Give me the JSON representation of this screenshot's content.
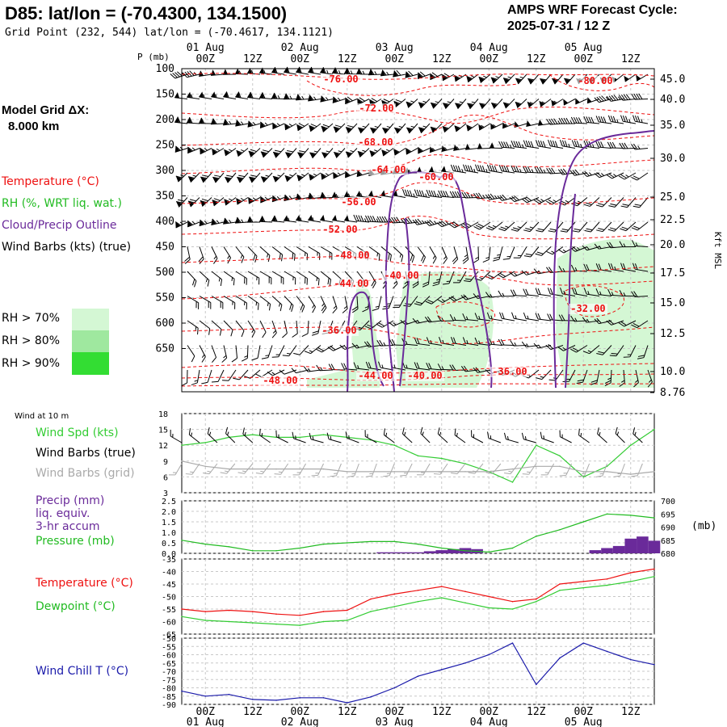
{
  "header": {
    "title": "D85:  lat/lon = (-70.4300, 134.1500)",
    "grid_point": "Grid Point (232, 544) lat/lon = (-70.4617, 134.1121)",
    "cycle_line1": "AMPS WRF Forecast Cycle:",
    "cycle_line2": "2025-07-31 / 12  Z"
  },
  "model_grid": {
    "line1": "Model Grid ΔX:",
    "line2": "8.000 km"
  },
  "legend": {
    "temperature": "Temperature (°C)",
    "rh": "RH (%, WRT liq. wat.)",
    "cloud": "Cloud/Precip Outline",
    "wind": "Wind Barbs (kts) (true)",
    "rh70": "RH > 70%",
    "rh80": "RH > 80%",
    "rh90": "RH > 90%",
    "rh_colors": [
      "#d4f7d4",
      "#9fe89f",
      "#33dd33"
    ]
  },
  "time_axis": {
    "hour_labels": [
      "00Z",
      "12Z",
      "00Z",
      "12Z",
      "00Z",
      "12Z",
      "00Z",
      "12Z",
      "00Z",
      "12Z"
    ],
    "date_labels": [
      "01 Aug",
      "02 Aug",
      "03 Aug",
      "04 Aug",
      "05 Aug"
    ]
  },
  "cross_section": {
    "pressure_unit_label": "P (mb)",
    "pressure_levels": [
      "100",
      "150",
      "200",
      "250",
      "300",
      "350",
      "400",
      "450",
      "500",
      "550",
      "600",
      "650"
    ],
    "height_labels": [
      "45.0",
      "40.0",
      "35.0",
      "30.0",
      "25.0",
      "22.5",
      "20.0",
      "17.5",
      "15.0",
      "12.5",
      "10.0",
      "8.76"
    ],
    "height_unit_label": "Kft MSL",
    "temperature_contour_labels": [
      "-76.00",
      "-80.00",
      "-72.00",
      "-68.00",
      "-64.00",
      "-60.00",
      "-56.00",
      "-52.00",
      "-48.00",
      "-40.00",
      "-44.00",
      "-32.00",
      "-36.00",
      "-44.00",
      "-40.00",
      "-36.00",
      "-48.00"
    ],
    "colors": {
      "temperature": "#ee1111",
      "cloud": "#6a2a9a",
      "barb": "#000000"
    }
  },
  "surface_wind": {
    "header": "Wind at 10 m",
    "speed_label": "Wind Spd (kts)",
    "true_label": "Wind Barbs (true)",
    "grid_label": "Wind Barbs (grid)",
    "ticks": [
      "18",
      "15",
      "12",
      "9",
      "6",
      "3"
    ]
  },
  "precip": {
    "label1": "Precip (mm)",
    "label2": "liq. equiv.",
    "label3": "3-hr accum",
    "pressure_label": "Pressure (mb)",
    "ticks_left": [
      "2.5",
      "2.0",
      "1.5",
      "1.0",
      "0.5",
      "0.0"
    ],
    "ticks_right": [
      "700",
      "695",
      "690",
      "685",
      "680"
    ],
    "right_unit": "(mb)"
  },
  "temp_panel": {
    "temperature_label": "Temperature (°C)",
    "dewpoint_label": "Dewpoint (°C)",
    "ticks": [
      "-35",
      "-40",
      "-45",
      "-50",
      "-55",
      "-60",
      "-65"
    ]
  },
  "windchill_panel": {
    "label": "Wind Chill T (°C)",
    "ticks": [
      "-50",
      "-55",
      "-60",
      "-65",
      "-70",
      "-75",
      "-80",
      "-85",
      "-90"
    ]
  },
  "chart_data": [
    {
      "type": "line",
      "title": "Wind at 10 m",
      "x_hours": [
        0,
        6,
        12,
        18,
        24,
        30,
        36,
        42,
        48,
        54,
        60,
        66,
        72,
        78,
        84,
        90,
        96,
        102,
        108,
        114,
        120
      ],
      "series": [
        {
          "name": "Wind Spd (kts)",
          "color": "#33cc33",
          "values": [
            12.0,
            12.5,
            13.5,
            14.0,
            13.5,
            13.5,
            14.0,
            13.5,
            13.0,
            12.0,
            10.0,
            9.5,
            8.5,
            7.0,
            5.0,
            12.0,
            10.0,
            6.0,
            8.0,
            12.0,
            15.0
          ]
        },
        {
          "name": "Wind Barbs (grid)",
          "color": "#aaaaaa",
          "values": [
            9.0,
            8.0,
            7.5,
            7.5,
            7.5,
            7.5,
            7.5,
            7.0,
            7.0,
            7.0,
            7.0,
            7.0,
            7.0,
            7.0,
            7.5,
            8.0,
            8.0,
            7.0,
            7.0,
            6.5,
            7.0
          ]
        }
      ],
      "ylim": [
        3,
        18
      ]
    },
    {
      "type": "bar",
      "title": "Precip (mm) / Pressure (mb)",
      "x_hours": [
        0,
        3,
        6,
        9,
        12,
        15,
        18,
        21,
        24,
        27,
        30,
        33,
        36,
        39,
        42,
        45,
        48,
        51,
        54,
        57,
        60,
        63,
        66,
        69,
        72,
        75,
        78,
        81,
        84,
        87,
        90,
        93,
        96,
        99,
        102,
        105,
        108,
        111,
        114,
        117,
        120
      ],
      "precip_mm": [
        0,
        0,
        0,
        0,
        0,
        0,
        0,
        0,
        0,
        0,
        0,
        0,
        0,
        0,
        0,
        0,
        0,
        0.05,
        0.05,
        0.05,
        0.05,
        0.1,
        0.15,
        0.2,
        0.25,
        0.2,
        0,
        0,
        0,
        0,
        0,
        0,
        0,
        0,
        0,
        0.15,
        0.25,
        0.35,
        0.7,
        0.8,
        0.6
      ],
      "pressure_series": {
        "name": "Pressure (mb)",
        "x_hours": [
          0,
          6,
          12,
          18,
          24,
          30,
          36,
          42,
          48,
          54,
          60,
          66,
          72,
          78,
          84,
          90,
          96,
          102,
          108,
          114,
          120
        ],
        "values": [
          685.0,
          683.5,
          682.5,
          681.0,
          681.0,
          682.0,
          683.5,
          684.0,
          684.5,
          684.5,
          683.5,
          682.0,
          681.0,
          680.5,
          682.0,
          686.5,
          689.0,
          692.0,
          695.0,
          694.5,
          693.5
        ]
      },
      "ylim_precip": [
        0,
        2.5
      ],
      "ylim_pressure": [
        680,
        700
      ]
    },
    {
      "type": "line",
      "title": "Temperature / Dewpoint",
      "x_hours": [
        0,
        6,
        12,
        18,
        24,
        30,
        36,
        42,
        48,
        54,
        60,
        66,
        72,
        78,
        84,
        90,
        96,
        102,
        108,
        114,
        120
      ],
      "series": [
        {
          "name": "Temperature (°C)",
          "color": "#ee1111",
          "values": [
            -55.0,
            -56.0,
            -55.5,
            -56.0,
            -57.0,
            -57.5,
            -56.0,
            -55.5,
            -51.0,
            -49.0,
            -47.5,
            -46.0,
            -48.0,
            -50.0,
            -52.0,
            -51.0,
            -45.0,
            -44.0,
            -43.0,
            -40.5,
            -39.0
          ]
        },
        {
          "name": "Dewpoint (°C)",
          "color": "#33cc33",
          "values": [
            -58.0,
            -59.5,
            -60.0,
            -60.5,
            -61.0,
            -61.5,
            -60.0,
            -59.5,
            -56.0,
            -54.0,
            -52.0,
            -50.5,
            -52.5,
            -54.5,
            -55.0,
            -52.0,
            -47.5,
            -46.5,
            -45.5,
            -44.0,
            -42.0
          ]
        }
      ],
      "ylim": [
        -65,
        -35
      ]
    },
    {
      "type": "line",
      "title": "Wind Chill T",
      "x_hours": [
        0,
        6,
        12,
        18,
        24,
        30,
        36,
        42,
        48,
        54,
        60,
        66,
        72,
        78,
        84,
        90,
        96,
        102,
        108,
        114,
        120
      ],
      "series": [
        {
          "name": "Wind Chill T (°C)",
          "color": "#1a1aaa",
          "values": [
            -82.0,
            -85.0,
            -84.0,
            -87.0,
            -87.5,
            -86.0,
            -86.0,
            -89.0,
            -85.5,
            -80.0,
            -73.0,
            -69.0,
            -65.0,
            -60.0,
            -53.0,
            -78.0,
            -62.0,
            -53.0,
            -58.0,
            -63.0,
            -66.0
          ]
        }
      ],
      "ylim": [
        -90,
        -50
      ]
    }
  ]
}
